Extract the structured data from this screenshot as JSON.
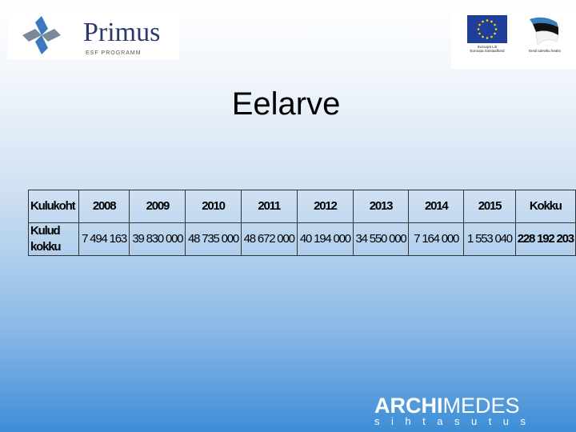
{
  "logos": {
    "primus_name": "Primus",
    "primus_sub": "ESF PROGRAMM",
    "eu_caption_1": "Euroopa Liit",
    "eu_caption_2": "Euroopa Sotsiaalfond",
    "estonia_caption": "Eesti tuleviku heaks",
    "archimedes_bold": "ARCHI",
    "archimedes_thin": "MEDES",
    "archimedes_sub": "sihtasutus"
  },
  "title": "Eelarve",
  "table": {
    "header": [
      "Kulukoht",
      "2008",
      "2009",
      "2010",
      "2011",
      "2012",
      "2013",
      "2014",
      "2015",
      "Kokku"
    ],
    "rows": [
      [
        "Kulud kokku",
        "7 494 163",
        "39 830 000",
        "48 735 000",
        "48 672 000",
        "40 194 000",
        "34 550 000",
        "7 164 000",
        "1 553 040",
        "228 192 203"
      ]
    ]
  },
  "colors": {
    "bg_top": "#ffffff",
    "bg_bottom": "#3d8ed6",
    "eu_blue": "#1f3f9a",
    "eu_star": "#ffdd00"
  }
}
